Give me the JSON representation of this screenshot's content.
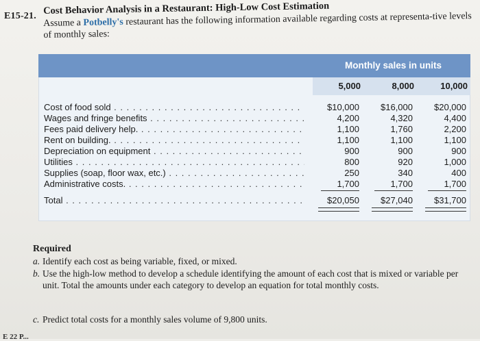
{
  "problem": {
    "id": "E15-21.",
    "title": "Cost Behavior Analysis in a Restaurant: High-Low Cost Estimation",
    "intro_pre": "Assume a ",
    "intro_brand": "Potbelly's",
    "intro_post": " restaurant has the following information available regarding costs at representa-tive levels of monthly sales:"
  },
  "table": {
    "header": "Monthly sales in units",
    "units": [
      "5,000",
      "8,000",
      "10,000"
    ],
    "rows": [
      {
        "label": "Cost of food sold",
        "values": [
          "$10,000",
          "$16,000",
          "$20,000"
        ]
      },
      {
        "label": "Wages and fringe benefits",
        "values": [
          "4,200",
          "4,320",
          "4,400"
        ]
      },
      {
        "label": "Fees paid delivery help.",
        "values": [
          "1,100",
          "1,760",
          "2,200"
        ]
      },
      {
        "label": "Rent on building.",
        "values": [
          "1,100",
          "1,100",
          "1,100"
        ]
      },
      {
        "label": "Depreciation on equipment",
        "values": [
          "900",
          "900",
          "900"
        ]
      },
      {
        "label": "Utilities",
        "values": [
          "800",
          "920",
          "1,000"
        ]
      },
      {
        "label": "Supplies (soap, floor wax, etc.)",
        "values": [
          "250",
          "340",
          "400"
        ]
      },
      {
        "label": "Administrative costs.",
        "values": [
          "1,700",
          "1,700",
          "1,700"
        ]
      }
    ],
    "total": {
      "label": "Total",
      "values": [
        "$20,050",
        "$27,040",
        "$31,700"
      ]
    }
  },
  "required": {
    "heading": "Required",
    "items": [
      {
        "letter": "a.",
        "text": "Identify each cost as being variable, fixed, or mixed."
      },
      {
        "letter": "b.",
        "text": "Use the high-low method to develop a schedule identifying the amount of each cost that is mixed or variable per unit. Total the amounts under each category to develop an equation for total monthly costs."
      },
      {
        "letter": "c.",
        "text": "Predict total costs for a monthly sales volume of 9,800 units."
      }
    ]
  },
  "footer_fragment": "E 22 P..."
}
